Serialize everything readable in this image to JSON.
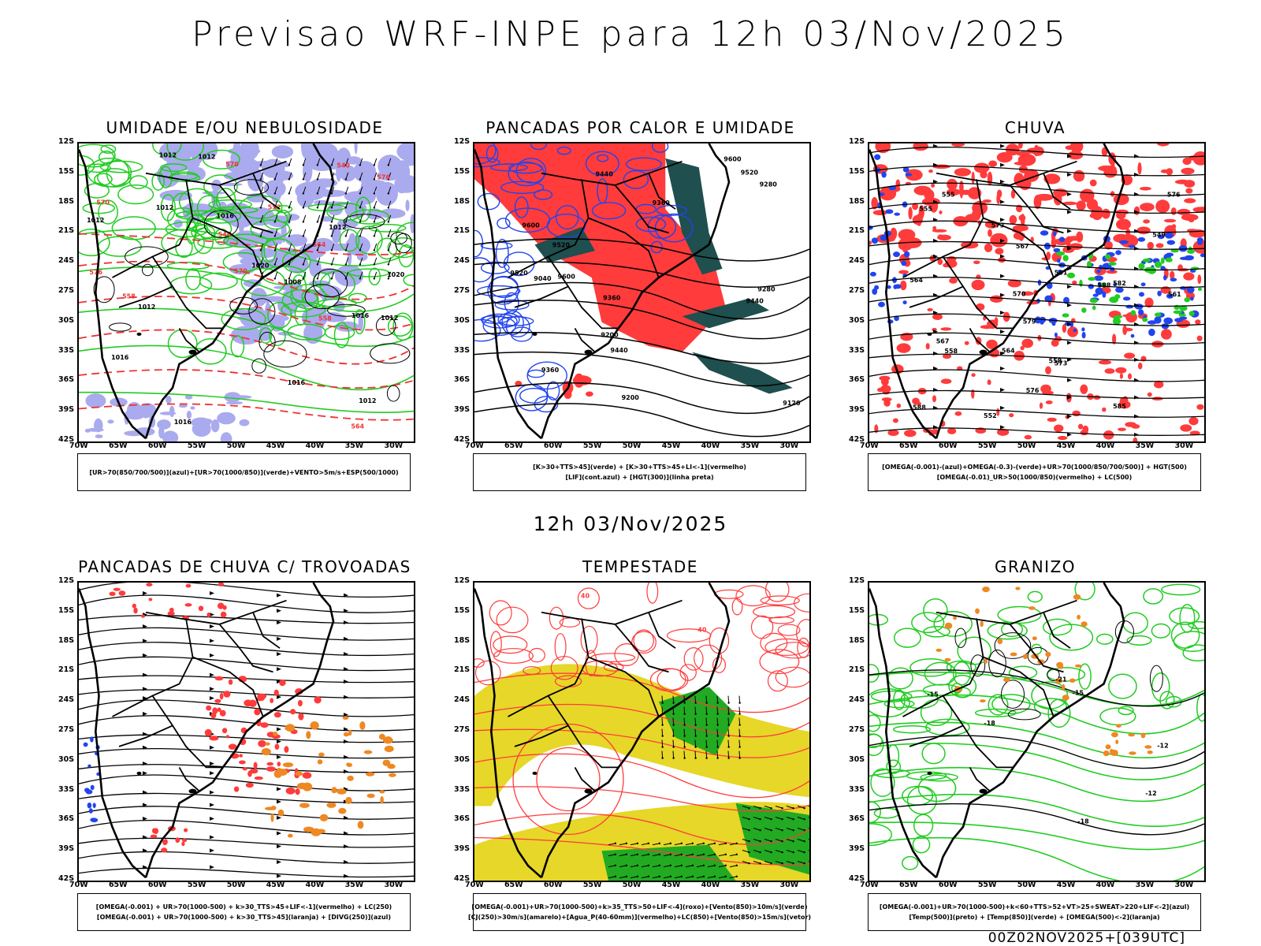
{
  "title": "Previsao WRF-INPE  para 12h 03/Nov/2025",
  "mid_title": "12h 03/Nov/2025",
  "footer": "00Z02NOV2025+[039UTC]",
  "lat_ticks": [
    "12S",
    "15S",
    "18S",
    "21S",
    "24S",
    "27S",
    "30S",
    "33S",
    "36S",
    "39S",
    "42S"
  ],
  "lon_ticks": [
    "70W",
    "65W",
    "60W",
    "55W",
    "50W",
    "45W",
    "40W",
    "35W",
    "30W"
  ],
  "panels": [
    {
      "title": "UMIDADE E/OU NEBULOSIDADE",
      "legend": [
        "[UR>70(850/700/500)](azul)+[UR>70(1000/850)](verde)+VENTO>5m/s+ESP(500/1000)"
      ],
      "contour_labels": [
        "1012",
        "1016",
        "1012",
        "1016",
        "1012",
        "1016",
        "1020",
        "1012",
        "1020",
        "1008",
        "1012",
        "1012",
        "1016",
        "1016",
        "1012",
        "1012",
        "576",
        "570",
        "564",
        "576",
        "570",
        "564",
        "558",
        "552",
        "546",
        "540",
        "570",
        "558"
      ]
    },
    {
      "title": "PANCADAS POR CALOR E UMIDADE",
      "legend": [
        "[K>30+TTS>45](verde) + [K>30+TTS>45+LI<-1](vermelho)",
        "[LIF](cont.azul) + [HGT(300)](linha preta)"
      ],
      "contour_labels": [
        "9600",
        "9520",
        "9440",
        "9600",
        "9520",
        "9440",
        "9360",
        "9600",
        "9520",
        "9440",
        "9360",
        "9280",
        "9200",
        "9120",
        "9040",
        "9200",
        "9280",
        "9360"
      ]
    },
    {
      "title": "CHUVA",
      "legend": [
        "[OMEGA(-0.001)-(azul)+OMEGA(-0.3)-(verde)+UR>70(1000/850/700/500)] + HGT(500)",
        "[OMEGA(-0.01)_UR>50(1000/850)(vermelho) + LC(500)"
      ],
      "contour_labels": [
        "588",
        "585",
        "582",
        "579",
        "576",
        "573",
        "570",
        "567",
        "564",
        "561",
        "558",
        "555",
        "552",
        "549",
        "588",
        "576",
        "573",
        "567",
        "564",
        "561",
        "558",
        "555"
      ]
    },
    {
      "title": "PANCADAS DE CHUVA C/ TROVOADAS",
      "legend": [
        "[OMEGA(-0.001) + UR>70(1000-500) + k>30_TTS>45+LIF<-1](vermelho) + LC(250)",
        "[OMEGA(-0.001) + UR>70(1000-500) + k>30_TTS>45](laranja) + [DIVG(250)](azul)"
      ],
      "contour_labels": []
    },
    {
      "title": "TEMPESTADE",
      "legend": [
        "[OMEGA(-0.001)+UR>70(1000-500)+k>35_TTS>50+LIF<-4](roxo)+[Vento(850)>10m/s](verde)",
        "[CJ(250)>30m/s](amarelo)+[Agua_P(40-60mm)](vermelho)+LC(850)+[Vento(850)>15m/s](vetor)"
      ],
      "contour_labels": [
        "40",
        "40"
      ]
    },
    {
      "title": "GRANIZO",
      "legend": [
        "[OMEGA(-0.001)+UR>70(1000-500)+k<60+TTS>52+VT>25+SWEAT>220+LIF<-2](azul)",
        "[Temp(500)](preto) + [Temp(850)](verde) + [OMEGA(500)<-2](laranja)"
      ],
      "contour_labels": [
        "-12",
        "-15",
        "-15",
        "-18",
        "-21",
        "-12",
        "-18"
      ]
    }
  ],
  "colors": {
    "blue_fill": "#aaaaee",
    "green_line": "#22cc22",
    "red_dash": "#ee3333",
    "red_fill": "#ff3b3b",
    "dark_teal": "#1f4f4f",
    "yellow_fill": "#e6d728",
    "green_fill": "#22aa22",
    "orange": "#ee8822",
    "blue": "#2244ee"
  }
}
